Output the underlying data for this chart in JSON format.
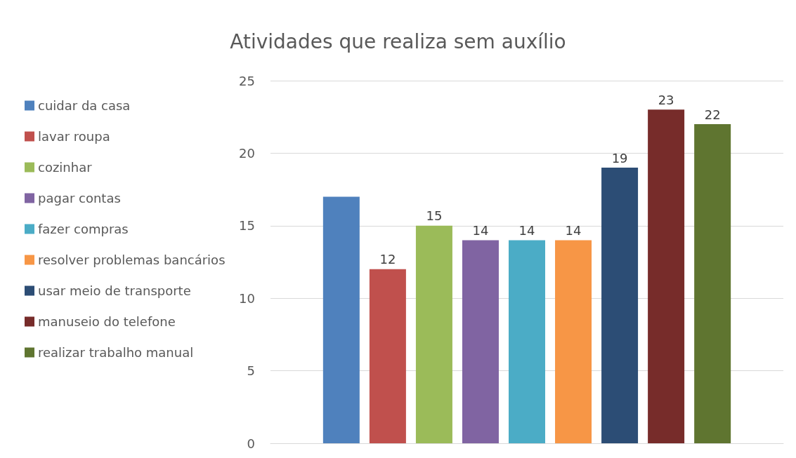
{
  "chart_data": {
    "type": "bar",
    "title": "Atividades que realiza sem auxílio",
    "categories": [
      null
    ],
    "series": [
      {
        "name": "cuidar da casa",
        "color": "#4f81bd",
        "values": [
          17
        ],
        "value_labels": [
          null
        ]
      },
      {
        "name": "lavar roupa",
        "color": "#c0504d",
        "values": [
          12
        ],
        "value_labels": [
          "12"
        ]
      },
      {
        "name": "cozinhar",
        "color": "#9bbb59",
        "values": [
          15
        ],
        "value_labels": [
          "15"
        ]
      },
      {
        "name": "pagar contas",
        "color": "#8064a2",
        "values": [
          14
        ],
        "value_labels": [
          "14"
        ]
      },
      {
        "name": "fazer compras",
        "color": "#4bacc6",
        "values": [
          14
        ],
        "value_labels": [
          "14"
        ]
      },
      {
        "name": "resolver problemas bancários",
        "color": "#f79646",
        "values": [
          14
        ],
        "value_labels": [
          "14"
        ]
      },
      {
        "name": "usar meio de transporte",
        "color": "#2c4d75",
        "values": [
          19
        ],
        "value_labels": [
          "19"
        ]
      },
      {
        "name": "manuseio do telefone",
        "color": "#772c2a",
        "values": [
          23
        ],
        "value_labels": [
          "23"
        ]
      },
      {
        "name": "realizar trabalho manual",
        "color": "#5f7530",
        "values": [
          22
        ],
        "value_labels": [
          "22"
        ]
      }
    ],
    "ylim": [
      0,
      25
    ],
    "yticks": [
      0,
      5,
      10,
      15,
      20,
      25
    ],
    "grid": "y",
    "legend": "left"
  }
}
